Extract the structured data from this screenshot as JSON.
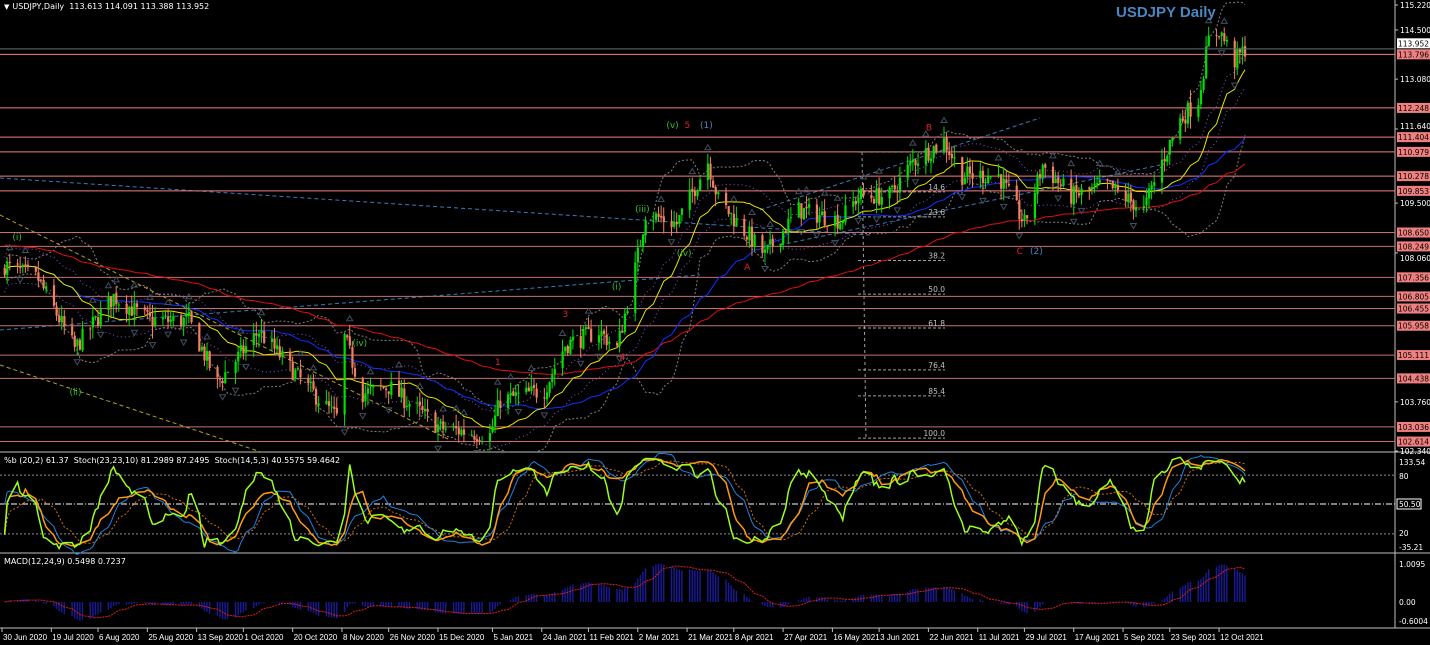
{
  "header": {
    "symbol": "USDJPY,Daily",
    "ohlc": "113.613 114.091 113.388 113.952"
  },
  "title": "USDJPY Daily",
  "colors": {
    "background": "#000000",
    "bull": "#00e000",
    "bear": "#f08060",
    "level": "#f08080",
    "ma_fast": "#e6e600",
    "ma_mid": "#1030ff",
    "ma_slow": "#e01010",
    "title": "#4a86c0",
    "wave_green": "#30c030",
    "wave_red": "#e02030",
    "wave_blue": "#4a86c0",
    "stoch_fast": "#9aff20",
    "stoch_slow": "#ff9a10",
    "pctb": "#2080e0",
    "macd_hist": "#1a1a9a",
    "macd_signal": "#e02020"
  },
  "price_axis": {
    "labels": [
      "115.220",
      "114.500",
      "113.080",
      "111.640",
      "109.500",
      "108.060",
      "103.760",
      "102.340"
    ],
    "current_price": "113.952"
  },
  "levels": [
    "113.796",
    "112.248",
    "111.404",
    "110.979",
    "110.278",
    "109.853",
    "108.650",
    "108.249",
    "107.356",
    "106.805",
    "106.455",
    "105.958",
    "105.111",
    "104.438",
    "103.036",
    "102.614"
  ],
  "fib_labels": [
    {
      "text": "14.6",
      "price": 109.88
    },
    {
      "text": "23.6",
      "price": 109.16
    },
    {
      "text": "38.2",
      "price": 107.9
    },
    {
      "text": "50.0",
      "price": 106.93
    },
    {
      "text": "61.8",
      "price": 105.95
    },
    {
      "text": "76.4",
      "price": 104.74
    },
    {
      "text": "85.4",
      "price": 103.99
    },
    {
      "text": "100.0",
      "price": 102.77
    }
  ],
  "wave_labels": [
    {
      "text": "(i)",
      "date": "2020-07-04",
      "price": 108.43,
      "color": "green"
    },
    {
      "text": "(ii)",
      "date": "2020-07-26",
      "price": 103.96,
      "color": "green"
    },
    {
      "text": "(iv)",
      "date": "2020-11-12",
      "price": 105.37,
      "color": "green"
    },
    {
      "text": "1",
      "date": "2021-01-06",
      "price": 104.82,
      "color": "red"
    },
    {
      "text": "3",
      "date": "2021-02-01",
      "price": 106.21,
      "color": "red"
    },
    {
      "text": "4",
      "date": "2021-02-23",
      "price": 104.97,
      "color": "red"
    },
    {
      "text": "(i)",
      "date": "2021-02-20",
      "price": 107.0,
      "color": "green"
    },
    {
      "text": "(iii)",
      "date": "2021-03-01",
      "price": 109.24,
      "color": "green"
    },
    {
      "text": "(iv)",
      "date": "2021-03-17",
      "price": 107.97,
      "color": "green"
    },
    {
      "text": "(v)",
      "date": "2021-03-13",
      "price": 111.67,
      "color": "green"
    },
    {
      "text": "5",
      "date": "2021-03-20",
      "price": 111.67,
      "color": "red"
    },
    {
      "text": "(1)",
      "date": "2021-03-26",
      "price": 111.67,
      "color": "blue"
    },
    {
      "text": "A",
      "date": "2021-04-12",
      "price": 107.57,
      "color": "red"
    },
    {
      "text": "B",
      "date": "2021-06-21",
      "price": 111.6,
      "color": "red"
    },
    {
      "text": "C",
      "date": "2021-07-26",
      "price": 108.03,
      "color": "red"
    },
    {
      "text": "(2)",
      "date": "2021-07-30",
      "price": 108.03,
      "color": "blue"
    }
  ],
  "stoch": {
    "header": "%b (20,2) 61.37  Stoch(23,23,10) 81.2989 87.2495  Stoch(14,5,3) 40.5575 59.4642",
    "axis_labels": [
      "133.54",
      "80",
      "50.50",
      "20",
      "-35.21"
    ]
  },
  "macd": {
    "header": "MACD(12,24,9) 0.5498 0.7237",
    "axis_labels": [
      "1.0095",
      "0.00",
      "-0.6004"
    ]
  },
  "date_axis": [
    {
      "label": "30 Jun 2020",
      "date": "2020-06-30"
    },
    {
      "label": "19 Jul 2020",
      "date": "2020-07-19"
    },
    {
      "label": "6 Aug 2020",
      "date": "2020-08-06"
    },
    {
      "label": "25 Aug 2020",
      "date": "2020-08-25"
    },
    {
      "label": "13 Sep 2020",
      "date": "2020-09-13"
    },
    {
      "label": "1 Oct 2020",
      "date": "2020-10-01"
    },
    {
      "label": "20 Oct 2020",
      "date": "2020-10-20"
    },
    {
      "label": "8 Nov 2020",
      "date": "2020-11-08"
    },
    {
      "label": "26 Nov 2020",
      "date": "2020-11-26"
    },
    {
      "label": "15 Dec 2020",
      "date": "2020-12-15"
    },
    {
      "label": "5 Jan 2021",
      "date": "2021-01-05"
    },
    {
      "label": "24 Jan 2021",
      "date": "2021-01-24"
    },
    {
      "label": "11 Feb 2021",
      "date": "2021-02-11"
    },
    {
      "label": "2 Mar 2021",
      "date": "2021-03-02"
    },
    {
      "label": "21 Mar 2021",
      "date": "2021-03-21"
    },
    {
      "label": "8 Apr 2021",
      "date": "2021-04-08"
    },
    {
      "label": "27 Apr 2021",
      "date": "2021-04-27"
    },
    {
      "label": "16 May 2021",
      "date": "2021-05-16"
    },
    {
      "label": "3 Jun 2021",
      "date": "2021-06-03"
    },
    {
      "label": "22 Jun 2021",
      "date": "2021-06-22"
    },
    {
      "label": "11 Jul 2021",
      "date": "2021-07-11"
    },
    {
      "label": "29 Jul 2021",
      "date": "2021-07-29"
    },
    {
      "label": "17 Aug 2021",
      "date": "2021-08-17"
    },
    {
      "label": "5 Sep 2021",
      "date": "2021-09-05"
    },
    {
      "label": "23 Sep 2021",
      "date": "2021-09-23"
    },
    {
      "label": "12 Oct 2021",
      "date": "2021-10-12"
    }
  ],
  "chart_data": {
    "type": "candlestick",
    "title": "USDJPY Daily",
    "ylim": [
      102.34,
      115.22
    ],
    "grid": false,
    "approx_close_keypoints": [
      [
        "2020-07-01",
        107.7
      ],
      [
        "2020-07-14",
        107.3
      ],
      [
        "2020-07-28",
        105.3
      ],
      [
        "2020-08-12",
        106.8
      ],
      [
        "2020-08-26",
        106.1
      ],
      [
        "2020-09-10",
        106.1
      ],
      [
        "2020-09-21",
        104.3
      ],
      [
        "2020-10-07",
        105.8
      ],
      [
        "2020-10-23",
        104.4
      ],
      [
        "2020-11-06",
        103.3
      ],
      [
        "2020-11-09",
        105.6
      ],
      [
        "2020-11-16",
        104.0
      ],
      [
        "2020-11-26",
        104.2
      ],
      [
        "2020-12-16",
        103.0
      ],
      [
        "2021-01-04",
        102.8
      ],
      [
        "2021-01-08",
        103.8
      ],
      [
        "2021-01-25",
        104.1
      ],
      [
        "2021-02-02",
        105.4
      ],
      [
        "2021-02-15",
        105.8
      ],
      [
        "2021-02-22",
        105.3
      ],
      [
        "2021-03-01",
        107.6
      ],
      [
        "2021-03-05",
        109.2
      ],
      [
        "2021-03-17",
        108.9
      ],
      [
        "2021-03-29",
        110.7
      ],
      [
        "2021-04-02",
        109.6
      ],
      [
        "2021-04-12",
        108.7
      ],
      [
        "2021-04-20",
        108.0
      ],
      [
        "2021-04-26",
        108.6
      ],
      [
        "2021-05-03",
        109.3
      ],
      [
        "2021-05-19",
        109.0
      ],
      [
        "2021-05-26",
        109.7
      ],
      [
        "2021-06-07",
        109.7
      ],
      [
        "2021-06-16",
        110.7
      ],
      [
        "2021-06-28",
        111.3
      ],
      [
        "2021-07-05",
        110.3
      ],
      [
        "2021-07-19",
        110.3
      ],
      [
        "2021-07-29",
        108.9
      ],
      [
        "2021-08-05",
        110.6
      ],
      [
        "2021-08-16",
        109.7
      ],
      [
        "2021-08-30",
        110.0
      ],
      [
        "2021-09-13",
        109.3
      ],
      [
        "2021-09-20",
        110.7
      ],
      [
        "2021-09-27",
        111.9
      ],
      [
        "2021-10-04",
        112.5
      ],
      [
        "2021-10-08",
        114.2
      ],
      [
        "2021-10-12",
        114.5
      ],
      [
        "2021-10-18",
        113.6
      ],
      [
        "2021-10-22",
        113.952
      ]
    ]
  }
}
